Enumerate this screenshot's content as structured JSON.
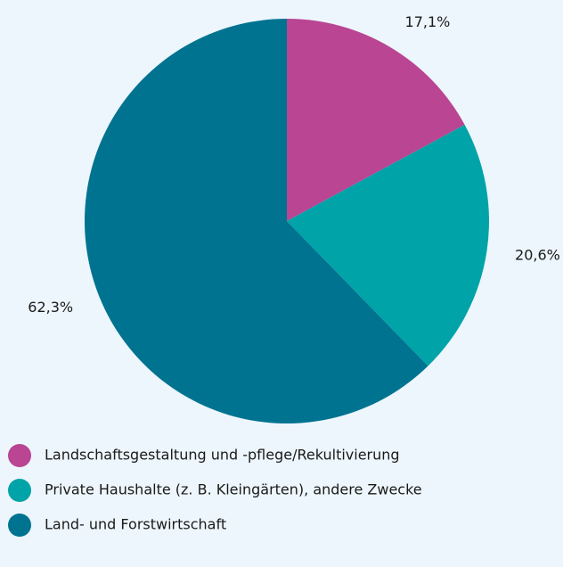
{
  "chart_data": {
    "type": "pie",
    "categories": [
      "Landschaftsgestaltung und -pflege/Rekultivierung",
      "Private Haushalte (z. B. Kleingärten), andere Zwecke",
      "Land- und Forstwirtschaft"
    ],
    "values": [
      17.1,
      20.6,
      62.3
    ],
    "value_labels": [
      "17,1%",
      "20,6%",
      "62,3%"
    ],
    "colors": [
      "#b94593",
      "#00a3a7",
      "#007391"
    ],
    "legend": "bottom"
  }
}
